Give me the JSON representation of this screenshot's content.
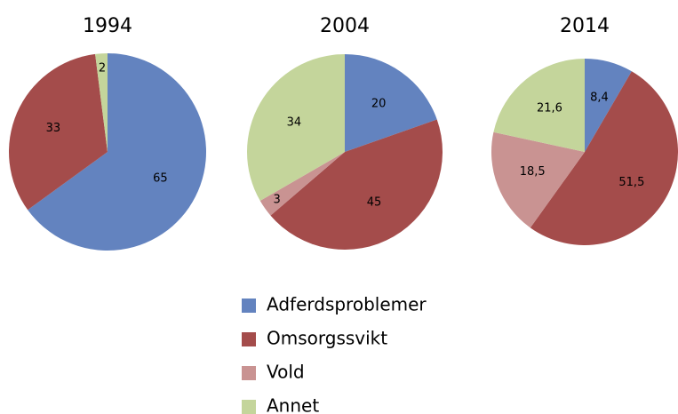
{
  "chart_data": [
    {
      "type": "pie",
      "title": "1994",
      "values": [
        65,
        33,
        2
      ],
      "colors": [
        "#6383bf",
        "#a44c4b",
        "#c4d59b"
      ]
    },
    {
      "type": "pie",
      "title": "2004",
      "values": [
        20,
        45,
        3,
        34
      ],
      "colors": [
        "#6383bf",
        "#a44c4b",
        "#c99392",
        "#c4d59b"
      ]
    },
    {
      "type": "pie",
      "title": "2014",
      "values": [
        8.4,
        51.5,
        18.5,
        21.6
      ],
      "value_labels": [
        "8,4",
        "51,5",
        "18,5",
        "21,6"
      ],
      "colors": [
        "#6383bf",
        "#a44c4b",
        "#c99392",
        "#c4d59b"
      ]
    }
  ],
  "legend": {
    "labels": [
      "Adferdsproblemer",
      "Omsorgssvikt",
      "Vold",
      "Annet"
    ],
    "colors": [
      "#6383bf",
      "#a44c4b",
      "#c99392",
      "#c4d59b"
    ]
  }
}
